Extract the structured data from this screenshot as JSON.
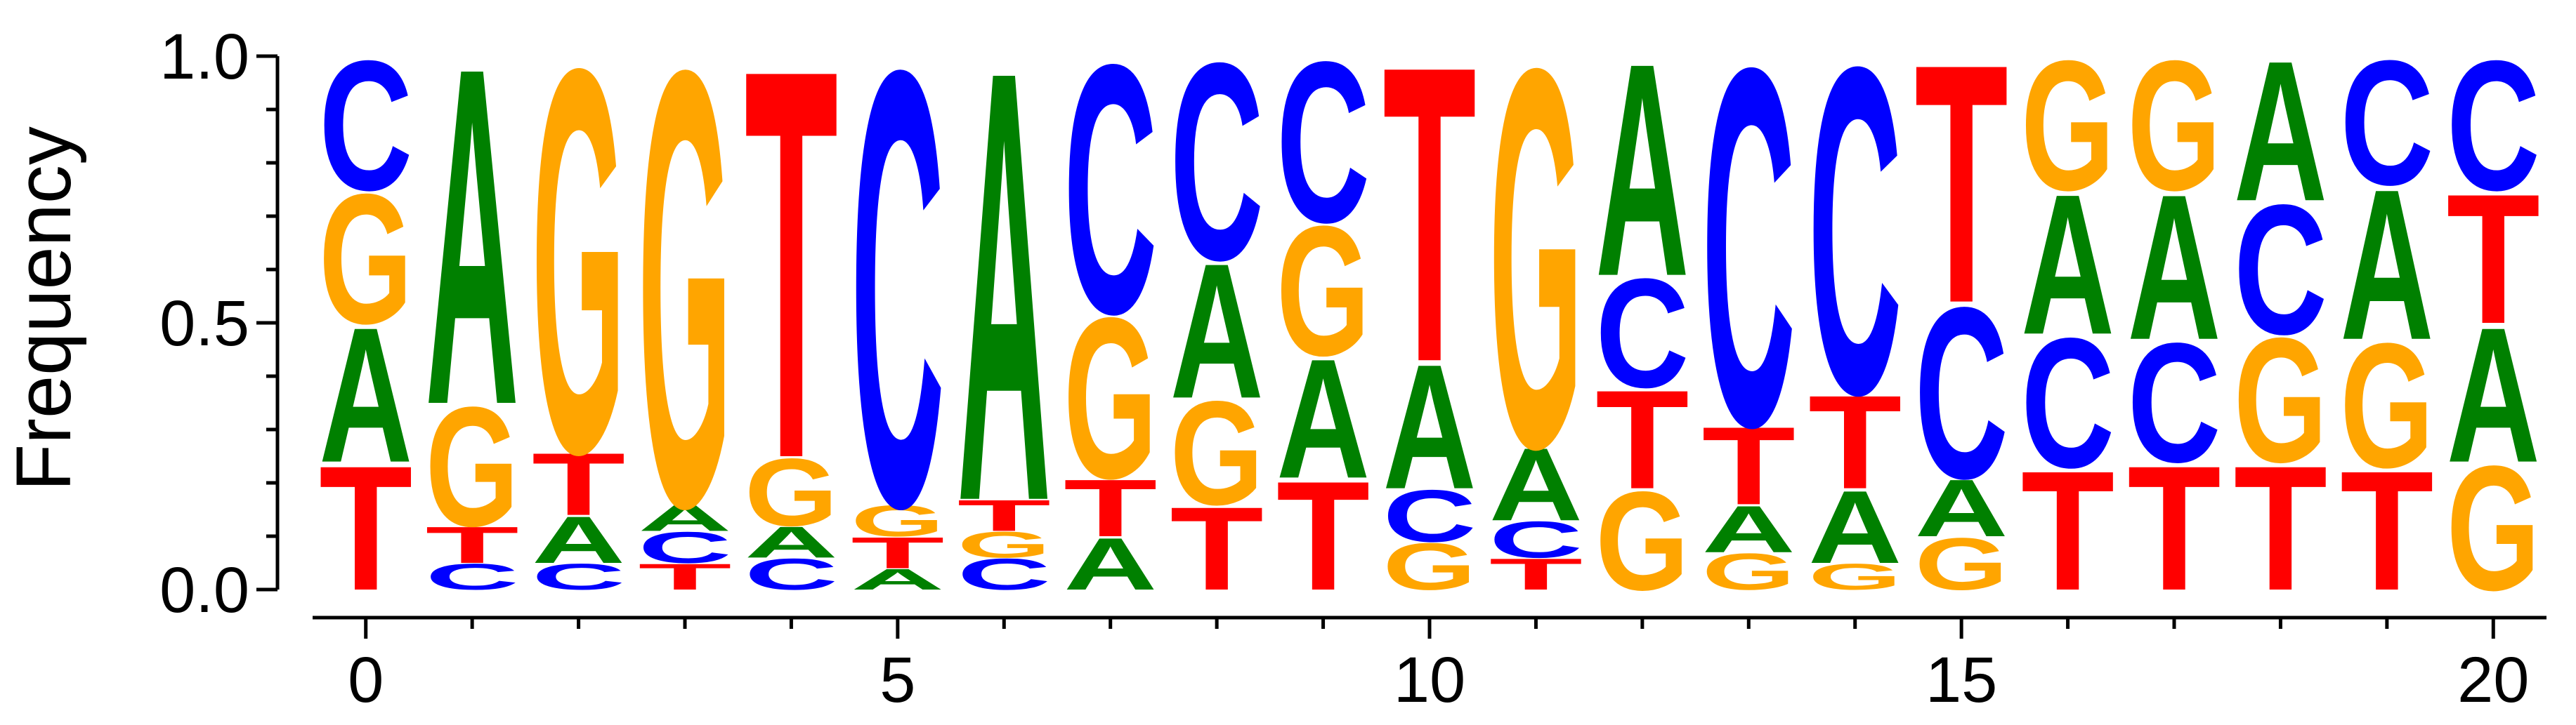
{
  "chart_data": {
    "type": "sequence-logo",
    "ylabel": "Frequency",
    "xlabel": "",
    "ylim": [
      0,
      1
    ],
    "yticks": [
      0.0,
      0.5,
      1.0
    ],
    "ytick_labels": [
      "0.0",
      "0.5",
      "1.0"
    ],
    "xlim": [
      -0.5,
      20.5
    ],
    "xticks_major": [
      0,
      5,
      10,
      15,
      20
    ],
    "xtick_labels": [
      "0",
      "5",
      "10",
      "15",
      "20"
    ],
    "colors": {
      "A": "#008000",
      "C": "#0000ff",
      "G": "#ffa500",
      "T": "#ff0000"
    },
    "positions": [
      {
        "pos": 0,
        "stack": [
          [
            "T",
            0.24
          ],
          [
            "A",
            0.26
          ],
          [
            "G",
            0.25
          ],
          [
            "C",
            0.25
          ]
        ]
      },
      {
        "pos": 1,
        "stack": [
          [
            "C",
            0.05
          ],
          [
            "T",
            0.07
          ],
          [
            "G",
            0.23
          ],
          [
            "A",
            0.65
          ]
        ]
      },
      {
        "pos": 2,
        "stack": [
          [
            "C",
            0.05
          ],
          [
            "A",
            0.09
          ],
          [
            "T",
            0.12
          ],
          [
            "G",
            0.74
          ]
        ]
      },
      {
        "pos": 3,
        "stack": [
          [
            "T",
            0.05
          ],
          [
            "C",
            0.06
          ],
          [
            "A",
            0.05
          ],
          [
            "G",
            0.84
          ]
        ]
      },
      {
        "pos": 4,
        "stack": [
          [
            "C",
            0.06
          ],
          [
            "A",
            0.06
          ],
          [
            "G",
            0.13
          ],
          [
            "T",
            0.75
          ]
        ]
      },
      {
        "pos": 5,
        "stack": [
          [
            "A",
            0.04
          ],
          [
            "T",
            0.06
          ],
          [
            "G",
            0.06
          ],
          [
            "C",
            0.84
          ]
        ]
      },
      {
        "pos": 6,
        "stack": [
          [
            "C",
            0.06
          ],
          [
            "G",
            0.05
          ],
          [
            "T",
            0.06
          ],
          [
            "A",
            0.83
          ]
        ]
      },
      {
        "pos": 7,
        "stack": [
          [
            "A",
            0.1
          ],
          [
            "T",
            0.11
          ],
          [
            "G",
            0.31
          ],
          [
            "C",
            0.48
          ]
        ]
      },
      {
        "pos": 8,
        "stack": [
          [
            "T",
            0.16
          ],
          [
            "G",
            0.2
          ],
          [
            "A",
            0.26
          ],
          [
            "C",
            0.38
          ]
        ]
      },
      {
        "pos": 9,
        "stack": [
          [
            "T",
            0.21
          ],
          [
            "A",
            0.23
          ],
          [
            "G",
            0.25
          ],
          [
            "C",
            0.31
          ]
        ]
      },
      {
        "pos": 10,
        "stack": [
          [
            "G",
            0.09
          ],
          [
            "C",
            0.1
          ],
          [
            "A",
            0.24
          ],
          [
            "T",
            0.57
          ]
        ]
      },
      {
        "pos": 11,
        "stack": [
          [
            "T",
            0.06
          ],
          [
            "C",
            0.07
          ],
          [
            "A",
            0.14
          ],
          [
            "G",
            0.73
          ]
        ]
      },
      {
        "pos": 12,
        "stack": [
          [
            "G",
            0.19
          ],
          [
            "T",
            0.19
          ],
          [
            "C",
            0.21
          ],
          [
            "A",
            0.41
          ]
        ]
      },
      {
        "pos": 13,
        "stack": [
          [
            "G",
            0.07
          ],
          [
            "A",
            0.09
          ],
          [
            "T",
            0.15
          ],
          [
            "C",
            0.69
          ]
        ]
      },
      {
        "pos": 14,
        "stack": [
          [
            "G",
            0.05
          ],
          [
            "A",
            0.14
          ],
          [
            "T",
            0.18
          ],
          [
            "C",
            0.63
          ]
        ]
      },
      {
        "pos": 15,
        "stack": [
          [
            "G",
            0.1
          ],
          [
            "A",
            0.11
          ],
          [
            "C",
            0.33
          ],
          [
            "T",
            0.46
          ]
        ]
      },
      {
        "pos": 16,
        "stack": [
          [
            "T",
            0.23
          ],
          [
            "C",
            0.25
          ],
          [
            "A",
            0.27
          ],
          [
            "G",
            0.25
          ]
        ]
      },
      {
        "pos": 17,
        "stack": [
          [
            "T",
            0.24
          ],
          [
            "C",
            0.23
          ],
          [
            "A",
            0.28
          ],
          [
            "G",
            0.25
          ]
        ]
      },
      {
        "pos": 18,
        "stack": [
          [
            "T",
            0.24
          ],
          [
            "G",
            0.24
          ],
          [
            "C",
            0.25
          ],
          [
            "A",
            0.27
          ]
        ]
      },
      {
        "pos": 19,
        "stack": [
          [
            "T",
            0.23
          ],
          [
            "G",
            0.24
          ],
          [
            "A",
            0.29
          ],
          [
            "C",
            0.24
          ]
        ]
      },
      {
        "pos": 20,
        "stack": [
          [
            "G",
            0.24
          ],
          [
            "A",
            0.26
          ],
          [
            "T",
            0.25
          ],
          [
            "C",
            0.25
          ]
        ]
      }
    ]
  }
}
